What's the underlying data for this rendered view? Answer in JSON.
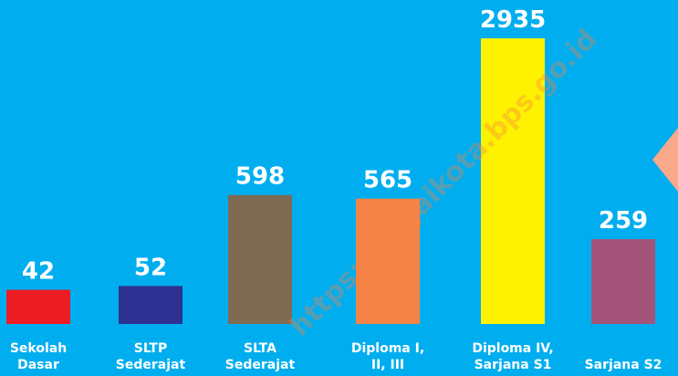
{
  "chart_data": {
    "type": "bar",
    "scale": "sqrt",
    "categories": [
      [
        "Sekolah",
        "Dasar"
      ],
      [
        "SLTP",
        "Sederajat"
      ],
      [
        "SLTA",
        "Sederajat"
      ],
      [
        "Diploma I,",
        "II, III"
      ],
      [
        "Diploma IV,",
        "Sarjana S1"
      ],
      [
        "Sarjana S2"
      ]
    ],
    "values": [
      42,
      52,
      598,
      565,
      2935,
      259
    ],
    "colors": [
      "#ed1c24",
      "#2e3192",
      "#7f6a52",
      "#f58345",
      "#fff200",
      "#a4547a"
    ],
    "watermark": "https://binjaikota.bps.go.id"
  }
}
